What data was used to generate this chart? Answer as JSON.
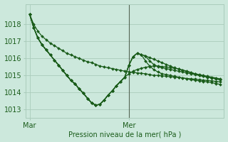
{
  "bg_color": "#cce8dc",
  "grid_color": "#aaccbb",
  "line_color": "#1a5c1a",
  "marker_color": "#1a5c1a",
  "xlabel": "Pression niveau de la mer( hPa )",
  "yticks": [
    1013,
    1014,
    1015,
    1016,
    1017,
    1018
  ],
  "ylim": [
    1012.5,
    1019.2
  ],
  "xlim": [
    -1,
    47
  ],
  "xtick_positions": [
    0,
    24
  ],
  "xtick_labels": [
    "Mar",
    "Mer"
  ],
  "vline_x": 24,
  "series": [
    {
      "x": [
        0,
        1,
        2,
        3,
        4,
        5,
        6,
        7,
        8,
        9,
        10,
        11,
        12,
        13,
        14,
        15,
        16,
        17,
        18,
        19,
        20,
        21,
        22,
        23,
        24,
        25,
        26,
        27,
        28,
        29,
        30,
        31,
        32,
        33,
        34,
        35,
        36,
        37,
        38,
        39,
        40,
        41,
        42,
        43,
        44,
        45,
        46
      ],
      "y": [
        1018.6,
        1018.0,
        1017.6,
        1017.3,
        1017.1,
        1016.9,
        1016.75,
        1016.6,
        1016.45,
        1016.3,
        1016.2,
        1016.1,
        1016.0,
        1015.9,
        1015.8,
        1015.75,
        1015.65,
        1015.55,
        1015.5,
        1015.45,
        1015.4,
        1015.35,
        1015.3,
        1015.25,
        1015.2,
        1015.18,
        1015.15,
        1015.12,
        1015.1,
        1015.05,
        1015.0,
        1015.0,
        1014.98,
        1014.95,
        1014.92,
        1014.9,
        1014.88,
        1014.85,
        1014.82,
        1014.8,
        1014.78,
        1014.75,
        1014.72,
        1014.7,
        1014.68,
        1014.65,
        1014.62
      ]
    },
    {
      "x": [
        0,
        1,
        2,
        3,
        4,
        5,
        6,
        7,
        8,
        9,
        10,
        11,
        12,
        13,
        14,
        15,
        16,
        17,
        18,
        19,
        20,
        21,
        22,
        23,
        24,
        25,
        26,
        27,
        28,
        29,
        30,
        31,
        32,
        33,
        34,
        35,
        36,
        37,
        38,
        39,
        40,
        41,
        42,
        43,
        44,
        45,
        46
      ],
      "y": [
        1018.6,
        1017.8,
        1017.2,
        1016.8,
        1016.5,
        1016.2,
        1015.9,
        1015.6,
        1015.3,
        1015.0,
        1014.7,
        1014.5,
        1014.2,
        1013.95,
        1013.65,
        1013.38,
        1013.25,
        1013.3,
        1013.55,
        1013.85,
        1014.1,
        1014.4,
        1014.65,
        1014.9,
        1015.1,
        1015.25,
        1015.35,
        1015.42,
        1015.48,
        1015.52,
        1015.55,
        1015.55,
        1015.52,
        1015.5,
        1015.45,
        1015.42,
        1015.38,
        1015.32,
        1015.25,
        1015.18,
        1015.1,
        1015.05,
        1015.0,
        1014.95,
        1014.9,
        1014.85,
        1014.8
      ]
    },
    {
      "x": [
        0,
        1,
        2,
        3,
        4,
        5,
        6,
        7,
        8,
        9,
        10,
        11,
        12,
        13,
        14,
        15,
        16,
        17,
        18,
        19,
        20,
        21,
        22,
        23,
        24,
        25,
        26,
        27,
        28,
        29,
        30,
        31,
        32,
        33,
        34,
        35,
        36,
        37,
        38,
        39,
        40,
        41,
        42,
        43,
        44,
        45,
        46
      ],
      "y": [
        1018.6,
        1017.8,
        1017.2,
        1016.8,
        1016.5,
        1016.2,
        1015.9,
        1015.6,
        1015.3,
        1015.0,
        1014.7,
        1014.5,
        1014.2,
        1013.95,
        1013.65,
        1013.38,
        1013.25,
        1013.3,
        1013.55,
        1013.85,
        1014.1,
        1014.4,
        1014.65,
        1014.9,
        1015.6,
        1016.1,
        1016.3,
        1016.22,
        1016.15,
        1016.05,
        1015.95,
        1015.85,
        1015.75,
        1015.65,
        1015.55,
        1015.45,
        1015.38,
        1015.3,
        1015.22,
        1015.15,
        1015.08,
        1015.0,
        1014.95,
        1014.9,
        1014.85,
        1014.8,
        1014.75
      ]
    },
    {
      "x": [
        0,
        1,
        2,
        3,
        4,
        5,
        6,
        7,
        8,
        9,
        10,
        11,
        12,
        13,
        14,
        15,
        16,
        17,
        18,
        19,
        20,
        21,
        22,
        23,
        24,
        25,
        26,
        27,
        28,
        29,
        30,
        31,
        32,
        33,
        34,
        35,
        36,
        37,
        38,
        39,
        40,
        41,
        42,
        43,
        44,
        45,
        46
      ],
      "y": [
        1018.6,
        1017.8,
        1017.2,
        1016.8,
        1016.5,
        1016.2,
        1015.9,
        1015.6,
        1015.3,
        1015.0,
        1014.7,
        1014.5,
        1014.2,
        1013.95,
        1013.65,
        1013.38,
        1013.25,
        1013.3,
        1013.55,
        1013.85,
        1014.1,
        1014.4,
        1014.65,
        1014.9,
        1015.6,
        1016.1,
        1016.3,
        1016.22,
        1016.15,
        1015.85,
        1015.65,
        1015.52,
        1015.45,
        1015.4,
        1015.35,
        1015.3,
        1015.25,
        1015.2,
        1015.15,
        1015.1,
        1015.05,
        1015.0,
        1014.95,
        1014.9,
        1014.85,
        1014.8,
        1014.75
      ]
    },
    {
      "x": [
        0,
        1,
        2,
        3,
        4,
        5,
        6,
        7,
        8,
        9,
        10,
        11,
        12,
        13,
        14,
        15,
        16,
        17,
        18,
        19,
        20,
        21,
        22,
        23,
        24,
        25,
        26,
        27,
        28,
        29,
        30,
        31,
        32,
        33,
        34,
        35,
        36,
        37,
        38,
        39,
        40,
        41,
        42,
        43,
        44,
        45,
        46
      ],
      "y": [
        1018.6,
        1017.8,
        1017.2,
        1016.8,
        1016.5,
        1016.2,
        1015.9,
        1015.6,
        1015.3,
        1015.0,
        1014.7,
        1014.5,
        1014.2,
        1013.95,
        1013.65,
        1013.38,
        1013.25,
        1013.3,
        1013.55,
        1013.85,
        1014.1,
        1014.4,
        1014.65,
        1014.9,
        1015.6,
        1016.1,
        1016.3,
        1016.22,
        1015.85,
        1015.55,
        1015.35,
        1015.2,
        1015.1,
        1015.05,
        1015.0,
        1014.95,
        1014.9,
        1014.85,
        1014.8,
        1014.75,
        1014.72,
        1014.68,
        1014.65,
        1014.62,
        1014.58,
        1014.52,
        1014.48
      ]
    }
  ]
}
